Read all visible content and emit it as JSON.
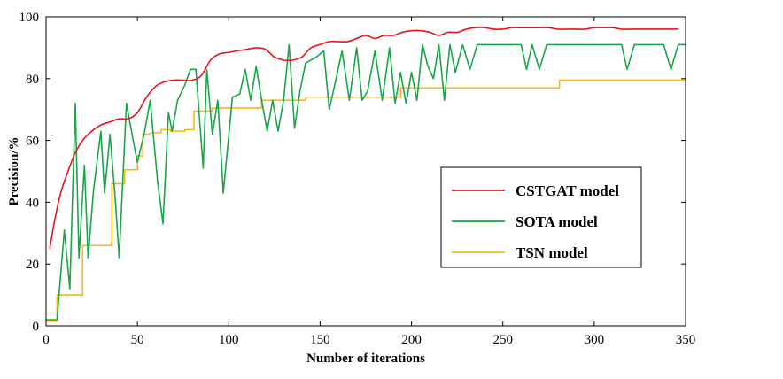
{
  "chart_data": {
    "type": "line",
    "title": "",
    "xlabel": "Number of iterations",
    "ylabel": "Precision/%",
    "xlim": [
      0,
      350
    ],
    "ylim": [
      0,
      100
    ],
    "xticks": [
      0,
      50,
      100,
      150,
      200,
      250,
      300,
      350
    ],
    "yticks": [
      0,
      20,
      40,
      60,
      80,
      100
    ],
    "grid": false,
    "legend_position": "center-right",
    "series": [
      {
        "name": "CSTGAT model",
        "color": "#e8141b",
        "style": "smooth",
        "x": [
          2,
          5,
          8,
          12,
          16,
          20,
          25,
          30,
          35,
          40,
          45,
          50,
          55,
          60,
          65,
          70,
          75,
          80,
          85,
          90,
          95,
          100,
          105,
          110,
          115,
          120,
          125,
          130,
          135,
          140,
          145,
          150,
          155,
          160,
          165,
          170,
          175,
          180,
          185,
          190,
          195,
          200,
          205,
          210,
          215,
          220,
          225,
          230,
          235,
          240,
          245,
          250,
          255,
          260,
          265,
          270,
          275,
          280,
          285,
          290,
          295,
          300,
          305,
          310,
          315,
          320,
          325,
          330,
          335,
          340,
          346
        ],
        "values": [
          25,
          35,
          43,
          50,
          56,
          60,
          63,
          65,
          66,
          67,
          67,
          69,
          74,
          77.5,
          79,
          79.5,
          79.5,
          79.5,
          81,
          86,
          88,
          88.5,
          89,
          89.5,
          90,
          89.5,
          87,
          86,
          86,
          87,
          90,
          91,
          92,
          92,
          92,
          93,
          94,
          93,
          94,
          94,
          95,
          95.5,
          95.5,
          95,
          94,
          95,
          95,
          96,
          96.5,
          96.5,
          96,
          96,
          96.5,
          96.5,
          96.5,
          96.5,
          96.5,
          96,
          96,
          96,
          96,
          96.5,
          96.5,
          96.5,
          96,
          96,
          96,
          96,
          96,
          96,
          96
        ]
      },
      {
        "name": "SOTA model",
        "color": "#19a64b",
        "style": "straight",
        "x": [
          0,
          6,
          10,
          13,
          16,
          18,
          21,
          23,
          26,
          30,
          32,
          35,
          38,
          40,
          44,
          48,
          50,
          54,
          57,
          61,
          64,
          67,
          69,
          72,
          76,
          79,
          82,
          86,
          88,
          91,
          94,
          97,
          102,
          106,
          109,
          112,
          115,
          118,
          121,
          124,
          127,
          130,
          133,
          136,
          139,
          142,
          145,
          148,
          152,
          155,
          158,
          162,
          166,
          170,
          173,
          176,
          180,
          184,
          188,
          191,
          194,
          197,
          200,
          203,
          206,
          209,
          212,
          215,
          218,
          221,
          224,
          228,
          232,
          236,
          240,
          244,
          248,
          252,
          256,
          260,
          263,
          266,
          270,
          274,
          278,
          282,
          286,
          290,
          294,
          298,
          302,
          306,
          310,
          315,
          318,
          322,
          326,
          330,
          334,
          338,
          342,
          346,
          350
        ],
        "values": [
          2,
          2,
          31,
          12,
          72,
          22,
          52,
          22,
          44,
          63,
          43,
          62,
          40,
          22,
          72,
          59,
          53,
          63,
          73,
          47,
          33,
          69,
          63,
          73,
          78,
          83,
          83,
          51,
          83,
          62,
          73,
          43,
          74,
          75,
          83,
          73,
          84,
          73,
          63,
          73,
          63,
          73,
          91,
          64,
          76,
          85,
          86,
          87,
          89,
          70,
          78,
          89,
          73,
          90,
          73,
          76,
          89,
          73,
          90,
          72,
          82,
          72,
          82,
          73,
          91,
          84,
          80,
          91,
          73,
          91,
          82,
          91,
          83,
          91,
          91,
          91,
          91,
          91,
          91,
          91,
          83,
          91,
          83,
          91,
          91,
          91,
          91,
          91,
          91,
          91,
          91,
          91,
          91,
          91,
          83,
          91,
          91,
          91,
          91,
          91,
          83,
          91,
          91
        ]
      },
      {
        "name": "TSN model",
        "color": "#fcb714",
        "style": "step",
        "x": [
          0,
          6,
          20,
          36,
          43,
          50,
          53,
          57,
          63,
          68,
          76,
          81,
          91,
          113,
          118,
          136,
          142,
          162,
          189,
          194,
          250,
          281,
          285,
          350
        ],
        "values": [
          1.5,
          10,
          26,
          46,
          50.5,
          55,
          62,
          62.5,
          63.5,
          63,
          63.5,
          69.5,
          70.5,
          70.5,
          73,
          73,
          74,
          74,
          74,
          77,
          77,
          79.5,
          79.5,
          79.5
        ]
      }
    ]
  }
}
